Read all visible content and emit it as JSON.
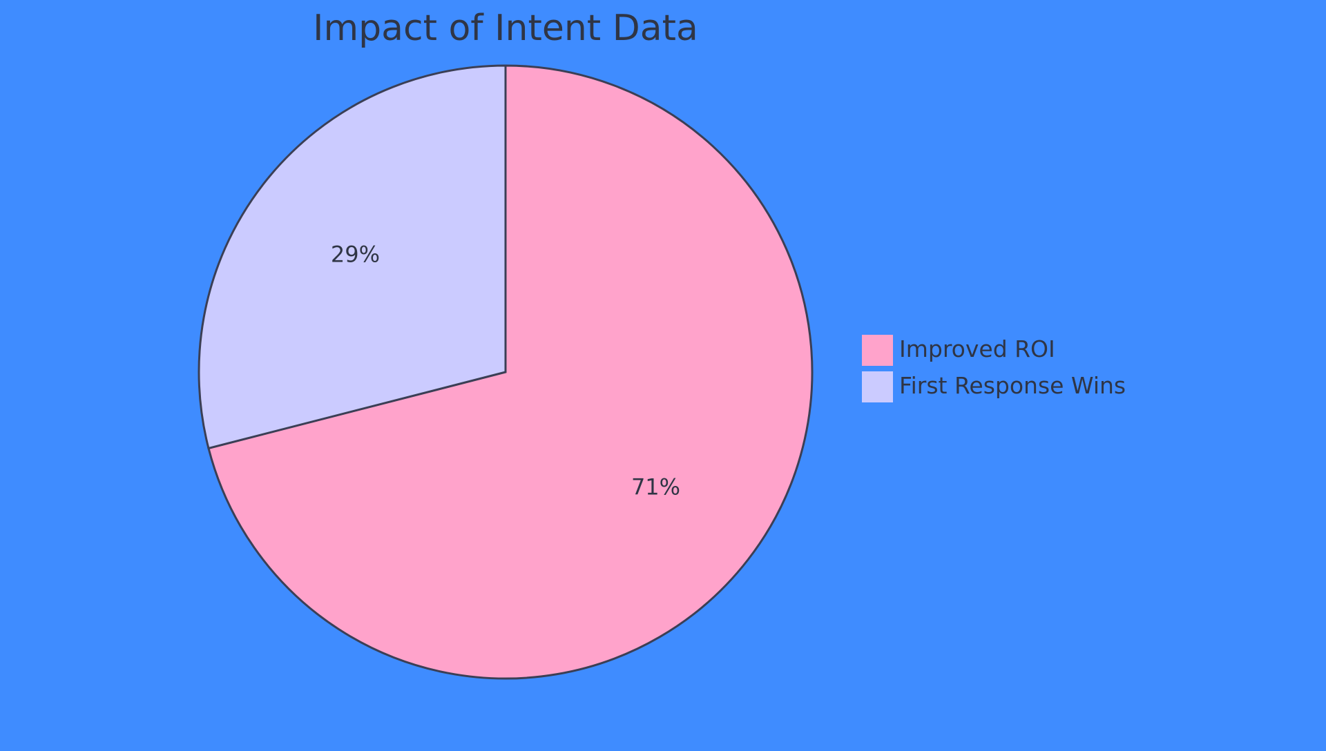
{
  "background_color": "#3f8cff",
  "chart_data": {
    "type": "pie",
    "title": "Impact of Intent Data",
    "start_angle_deg": 0,
    "direction": "clockwise",
    "legend_position": "right",
    "stroke_color": "#3b3f55",
    "slices": [
      {
        "label": "Improved ROI",
        "value": 71,
        "display": "71%",
        "color": "#ffa3cb"
      },
      {
        "label": "First Response Wins",
        "value": 29,
        "display": "29%",
        "color": "#cbcbff"
      }
    ]
  }
}
